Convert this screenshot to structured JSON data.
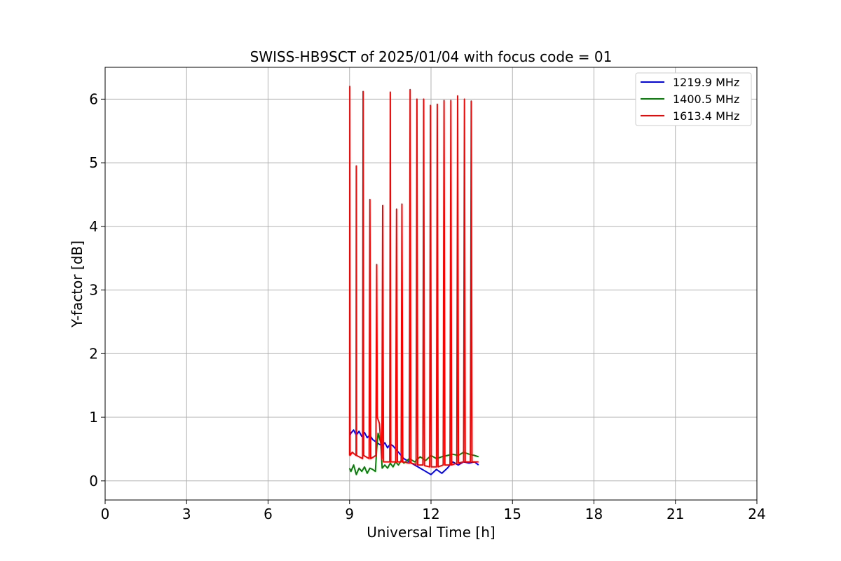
{
  "chart_data": {
    "type": "line",
    "title": "SWISS-HB9SCT of 2025/01/04 with focus code = 01",
    "xlabel": "Universal Time [h]",
    "ylabel": "Y-factor [dB]",
    "xlim": [
      0,
      24
    ],
    "ylim": [
      -0.3,
      6.5
    ],
    "xticks": [
      0,
      3,
      6,
      9,
      12,
      15,
      18,
      21,
      24
    ],
    "yticks": [
      0,
      1,
      2,
      3,
      4,
      5,
      6
    ],
    "grid": true,
    "legend_position": "top-right",
    "series": [
      {
        "name": "1219.9 MHz",
        "color": "#0000ff",
        "x": [
          9.0,
          9.05,
          9.15,
          9.25,
          9.35,
          9.45,
          9.55,
          9.65,
          9.75,
          9.85,
          9.95,
          10.0,
          10.2,
          10.3,
          10.4,
          10.5,
          10.6,
          10.7,
          10.8,
          10.9,
          11.0,
          11.2,
          11.4,
          11.6,
          11.8,
          12.0,
          12.2,
          12.4,
          12.6,
          12.8,
          13.0,
          13.2,
          13.4,
          13.6,
          13.75
        ],
        "y": [
          0.7,
          0.75,
          0.8,
          0.72,
          0.78,
          0.7,
          0.76,
          0.68,
          0.72,
          0.65,
          0.62,
          0.6,
          0.55,
          0.6,
          0.52,
          0.58,
          0.55,
          0.5,
          0.45,
          0.4,
          0.35,
          0.3,
          0.25,
          0.2,
          0.15,
          0.1,
          0.18,
          0.12,
          0.2,
          0.3,
          0.25,
          0.3,
          0.28,
          0.3,
          0.25
        ]
      },
      {
        "name": "1400.5 MHz",
        "color": "#008000",
        "x": [
          9.0,
          9.05,
          9.15,
          9.25,
          9.35,
          9.45,
          9.55,
          9.65,
          9.75,
          9.85,
          9.95,
          10.0,
          10.05,
          10.15,
          10.2,
          10.3,
          10.4,
          10.5,
          10.6,
          10.7,
          10.8,
          10.9,
          11.0,
          11.2,
          11.4,
          11.6,
          11.8,
          12.0,
          12.2,
          12.4,
          12.6,
          12.8,
          13.0,
          13.2,
          13.4,
          13.6,
          13.75
        ],
        "y": [
          0.2,
          0.15,
          0.25,
          0.1,
          0.2,
          0.15,
          0.22,
          0.12,
          0.2,
          0.18,
          0.15,
          0.5,
          0.75,
          0.6,
          0.2,
          0.25,
          0.2,
          0.28,
          0.22,
          0.3,
          0.25,
          0.32,
          0.28,
          0.35,
          0.3,
          0.38,
          0.32,
          0.4,
          0.35,
          0.38,
          0.4,
          0.42,
          0.4,
          0.45,
          0.42,
          0.4,
          0.38
        ]
      },
      {
        "name": "1613.4 MHz",
        "color": "#ff0000",
        "x": [
          9.0,
          9.01,
          9.02,
          9.1,
          9.24,
          9.25,
          9.26,
          9.48,
          9.5,
          9.52,
          9.72,
          9.75,
          9.78,
          9.97,
          10.0,
          10.02,
          10.1,
          10.19,
          10.22,
          10.25,
          10.4,
          10.48,
          10.5,
          10.52,
          10.7,
          10.73,
          10.76,
          10.9,
          10.93,
          10.96,
          11.2,
          11.23,
          11.26,
          11.45,
          11.48,
          11.51,
          11.7,
          11.73,
          11.76,
          11.95,
          11.98,
          12.01,
          12.2,
          12.23,
          12.26,
          12.45,
          12.48,
          12.51,
          12.7,
          12.73,
          12.76,
          12.95,
          12.98,
          13.01,
          13.2,
          13.23,
          13.26,
          13.45,
          13.48,
          13.51,
          13.75
        ],
        "y": [
          0.4,
          6.2,
          0.4,
          0.45,
          0.4,
          4.95,
          0.4,
          0.35,
          6.12,
          0.4,
          0.35,
          4.42,
          0.35,
          0.4,
          3.4,
          1.0,
          0.9,
          0.35,
          4.33,
          0.3,
          0.3,
          0.3,
          6.11,
          0.3,
          0.3,
          4.27,
          0.3,
          0.3,
          4.35,
          0.3,
          0.28,
          6.15,
          0.28,
          0.26,
          6.0,
          0.25,
          0.25,
          6.0,
          0.24,
          0.22,
          5.9,
          0.22,
          0.22,
          5.92,
          0.22,
          0.25,
          5.98,
          0.25,
          0.25,
          5.98,
          0.25,
          0.28,
          6.05,
          0.28,
          0.3,
          6.0,
          0.3,
          0.3,
          5.97,
          0.3,
          0.3
        ]
      }
    ]
  }
}
